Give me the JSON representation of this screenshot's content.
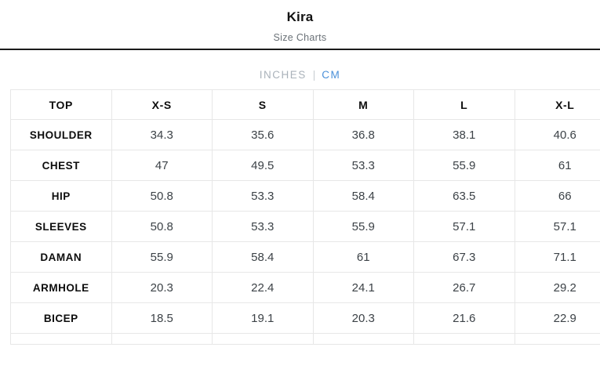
{
  "header": {
    "title": "Kira",
    "subtitle": "Size Charts"
  },
  "tabs": {
    "inches_label": "INCHES",
    "separator": "|",
    "cm_label": "CM",
    "active": "CM"
  },
  "colors": {
    "active_tab_blue": "#4a90d9",
    "inactive_tab_gray": "#aab2ba",
    "divider_dark": "#1a1a1a",
    "grid_border": "#e7e7e7",
    "value_text": "#3c4247",
    "label_text": "#0d0d0d",
    "subtitle_gray": "#6a7177"
  },
  "table": {
    "columns": [
      "TOP",
      "X-S",
      "S",
      "M",
      "L",
      "X-L"
    ],
    "rows": [
      {
        "label": "SHOULDER",
        "values": [
          "34.3",
          "35.6",
          "36.8",
          "38.1",
          "40.6"
        ]
      },
      {
        "label": "CHEST",
        "values": [
          "47",
          "49.5",
          "53.3",
          "55.9",
          "61"
        ]
      },
      {
        "label": "HIP",
        "values": [
          "50.8",
          "53.3",
          "58.4",
          "63.5",
          "66"
        ]
      },
      {
        "label": "SLEEVES",
        "values": [
          "50.8",
          "53.3",
          "55.9",
          "57.1",
          "57.1"
        ]
      },
      {
        "label": "DAMAN",
        "values": [
          "55.9",
          "58.4",
          "61",
          "67.3",
          "71.1"
        ]
      },
      {
        "label": "ARMHOLE",
        "values": [
          "20.3",
          "22.4",
          "24.1",
          "26.7",
          "29.2"
        ]
      },
      {
        "label": "BICEP",
        "values": [
          "18.5",
          "19.1",
          "20.3",
          "21.6",
          "22.9"
        ]
      }
    ]
  }
}
